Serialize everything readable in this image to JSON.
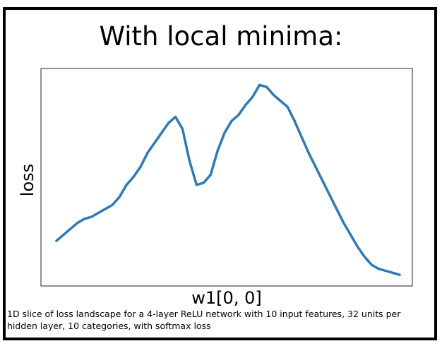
{
  "title": "With local minima:",
  "caption": "1D slice of loss landscape for a 4-layer ReLU network with 10 input features, 32 units per hidden layer, 10 categories, with softmax loss",
  "chart_data": {
    "type": "line",
    "title": "With local minima:",
    "xlabel": "w1[0, 0]",
    "ylabel": "loss",
    "x_ticks": "none",
    "y_ticks": "none",
    "grid": false,
    "line_color": "#2e7ab6",
    "xlim": [
      0,
      50
    ],
    "ylim": [
      0,
      100
    ],
    "series": [
      {
        "x": [
          0,
          1,
          2,
          3,
          4,
          5,
          6,
          7,
          8,
          9,
          10,
          11,
          12,
          13,
          14,
          15,
          16,
          17,
          18,
          19,
          20,
          21,
          22,
          23,
          24,
          25,
          26,
          27,
          28,
          29,
          30,
          31,
          32,
          33,
          34,
          35,
          36,
          37,
          38,
          39,
          40,
          41,
          42,
          43,
          44,
          45,
          46,
          47,
          48,
          49
        ],
        "values": [
          18,
          21,
          24,
          27,
          29,
          30,
          32,
          34,
          36,
          40,
          46,
          50,
          55,
          62,
          67,
          72,
          77,
          80,
          74,
          58,
          46,
          47,
          51,
          63,
          72,
          78,
          81,
          86,
          90,
          96,
          95,
          91,
          88,
          85,
          78,
          70,
          62,
          55,
          48,
          41,
          34,
          27,
          21,
          15,
          10,
          6,
          4,
          3,
          2,
          1
        ]
      }
    ]
  }
}
